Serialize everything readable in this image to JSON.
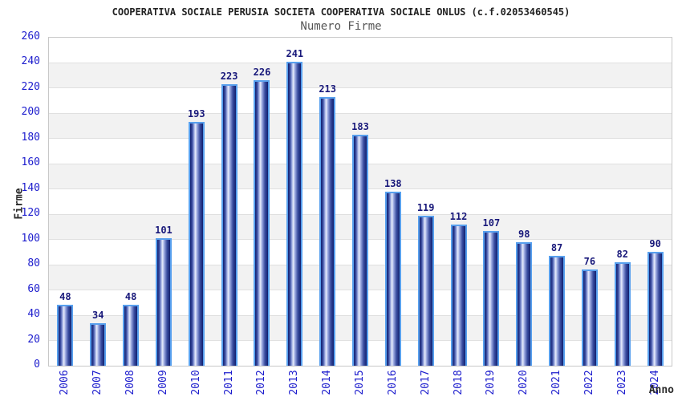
{
  "chart_data": {
    "type": "bar",
    "title": "COOPERATIVA SOCIALE PERUSIA SOCIETA COOPERATIVA SOCIALE ONLUS (c.f.02053460545)",
    "subtitle": "Numero Firme",
    "xlabel": "Anno",
    "ylabel": "Firme",
    "categories": [
      "2006",
      "2007",
      "2008",
      "2009",
      "2010",
      "2011",
      "2012",
      "2013",
      "2014",
      "2015",
      "2016",
      "2017",
      "2018",
      "2019",
      "2020",
      "2021",
      "2022",
      "2023",
      "2024"
    ],
    "values": [
      48,
      34,
      48,
      101,
      193,
      223,
      226,
      241,
      213,
      183,
      138,
      119,
      112,
      107,
      98,
      87,
      76,
      82,
      90
    ],
    "ylim": [
      0,
      260
    ],
    "ytick_step": 20,
    "grid": "horizontal gridlines with alternating white/gray bands every 20 units",
    "legend_position": "none",
    "bar_value_labels": true,
    "x_tick_rotation": -90
  },
  "colors": {
    "title": "#222222",
    "subtitle": "#555555",
    "tick_label": "#1c1ccd",
    "value_label": "#18187a",
    "axis_title": "#2b2b2b",
    "plot_border": "#c8c8c8",
    "gridline": "#e0e0e0",
    "band_light": "#ffffff",
    "band_dark": "#f2f2f2",
    "bar_border": "#58a0ee",
    "bar_gradient": "linear-gradient(90deg,#111f6e 0%,#3a4da0 16%,#9aa8e0 30%,#e9eefc 41%,#9aa8e0 54%,#3a4da0 76%,#111f6e 100%)"
  }
}
